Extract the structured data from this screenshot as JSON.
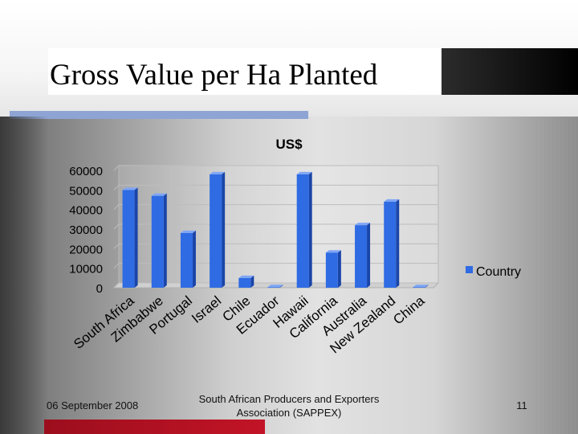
{
  "slide": {
    "title": "Gross Value per Ha Planted",
    "footer_date": "06 September 2008",
    "footer_org": "South African Producers and Exporters Association (SAPPEX)",
    "page_number": "11"
  },
  "colors": {
    "bar": "#2f6be3",
    "bar_top": "#7fa6f5",
    "bar_side": "#1a45a8",
    "accent": "#8da4d4",
    "footer_bar": "#b3121f"
  },
  "chart_data": {
    "type": "bar",
    "title": "US$",
    "categories": [
      "South Africa",
      "Zimbabwe",
      "Portugal",
      "Israel",
      "Chile",
      "Ecuador",
      "Hawaii",
      "California",
      "Australia",
      "New Zealand",
      "China"
    ],
    "series": [
      {
        "name": "Country",
        "values": [
          50000,
          47000,
          28000,
          58000,
          5000,
          300,
          58000,
          18000,
          32000,
          44000,
          300
        ]
      }
    ],
    "yticks": [
      "0",
      "10000",
      "20000",
      "30000",
      "40000",
      "50000",
      "60000"
    ],
    "ylim": [
      0,
      60000
    ],
    "grid": true,
    "legend_position": "right"
  }
}
